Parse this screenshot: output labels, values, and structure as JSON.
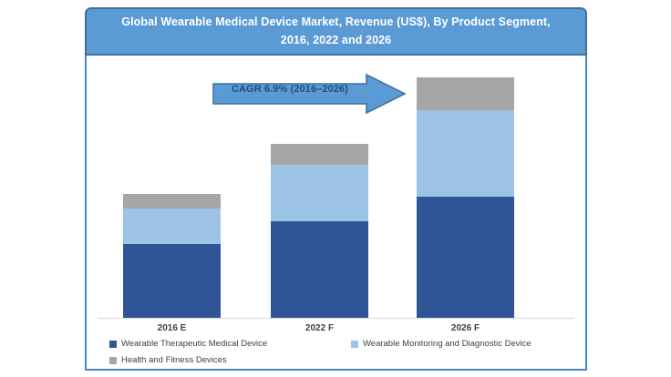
{
  "header": {
    "title_line1": "Global Wearable Medical Device Market, Revenue (US$), By Product Segment,",
    "title_line2": "2016, 2022 and 2026",
    "bg_color": "#5B9BD5",
    "border_color": "#41719C",
    "text_color": "#FFFFFF"
  },
  "annotation": {
    "cagr_label": "CAGR 6.9% (2016–2026)",
    "arrow_fill": "#5B9BD5",
    "arrow_border": "#41719C",
    "text_color": "#1F4E79"
  },
  "chart_data": {
    "type": "bar",
    "stacked": true,
    "title": "Global Wearable Medical Device Market, Revenue (US$), By Product Segment, 2016, 2022 and 2026",
    "xlabel": "",
    "ylabel": "",
    "grid": false,
    "legend_position": "bottom",
    "categories": [
      "2016 E",
      "2022 F",
      "2026 F"
    ],
    "series": [
      {
        "name": "Wearable Therapeutic Medical Device",
        "color": "#2F5597",
        "values": [
          60,
          78,
          98
        ]
      },
      {
        "name": "Wearable Monitoring and Diagnostic Device",
        "color": "#9DC3E6",
        "values": [
          28,
          45,
          69
        ]
      },
      {
        "name": "Health and Fitness Devices",
        "color": "#A6A6A6",
        "values": [
          12,
          17,
          26
        ]
      }
    ],
    "totals": [
      100,
      140,
      193
    ],
    "value_axis": {
      "visible": false,
      "ylim": [
        0,
        210
      ],
      "unit": "relative index (2016 total = 100, estimated; no numeric axis shown)"
    },
    "annotations": [
      "CAGR 6.9% (2016–2026)"
    ]
  }
}
